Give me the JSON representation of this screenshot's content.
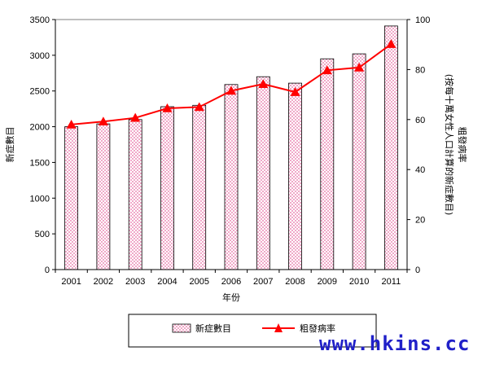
{
  "chart_data": {
    "type": "bar",
    "categories": [
      "2001",
      "2002",
      "2003",
      "2004",
      "2005",
      "2006",
      "2007",
      "2008",
      "2009",
      "2010",
      "2011"
    ],
    "series": [
      {
        "name": "新症數目",
        "type": "bar",
        "axis": "left",
        "values": [
          2000,
          2040,
          2100,
          2280,
          2300,
          2590,
          2700,
          2610,
          2950,
          3020,
          3410
        ],
        "color": "#f0a8c8"
      },
      {
        "name": "粗發病率",
        "type": "line",
        "axis": "right",
        "values": [
          58.0,
          59.2,
          60.7,
          64.5,
          65.0,
          71.5,
          74.2,
          71.0,
          79.7,
          80.8,
          90.2
        ],
        "color": "#ff0000"
      }
    ],
    "xlabel": "年份",
    "ylabel": "新症數目",
    "y2label": "粗發病率\n(按每十萬女性人口計算的新症數目)",
    "ylim": [
      0,
      3500
    ],
    "y2lim": [
      0,
      100
    ],
    "yticks": [
      "0",
      "500",
      "1000",
      "1500",
      "2000",
      "2500",
      "3000",
      "3500"
    ],
    "y2ticks": [
      "0",
      "20",
      "40",
      "60",
      "80",
      "100"
    ],
    "grid": false,
    "legend_position": "bottom"
  },
  "watermark": "www.hkins.cc"
}
